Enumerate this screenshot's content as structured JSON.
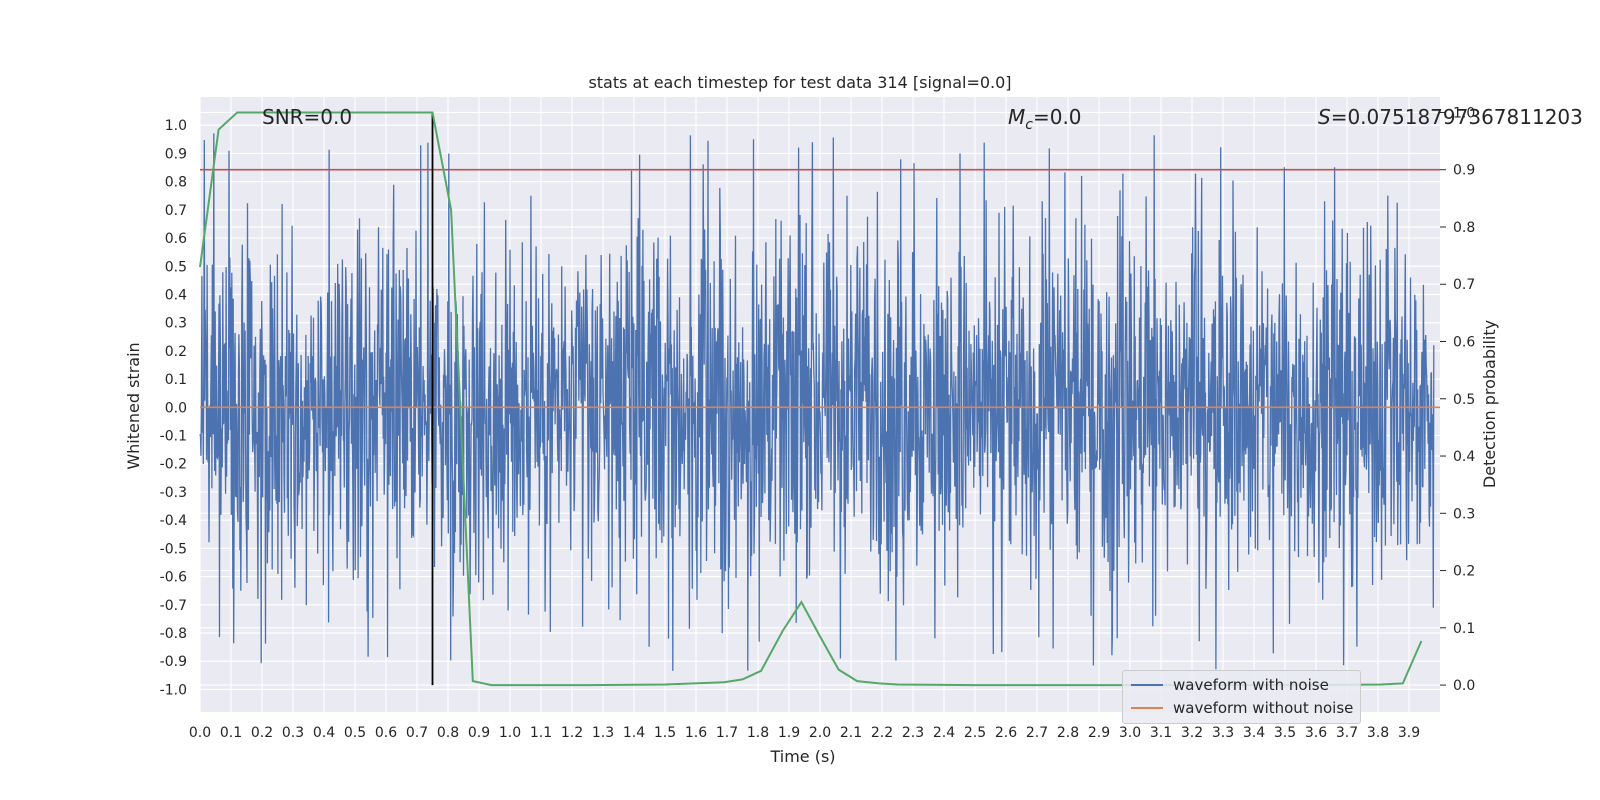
{
  "chart_data": {
    "type": "line",
    "title": "stats at each timestep for test data 314 [signal=0.0]",
    "xlabel": "Time (s)",
    "ylabel": "Whitened strain",
    "y2label": "Detection probability",
    "xlim": [
      0.0,
      4.0
    ],
    "ylim": [
      -1.08,
      1.1
    ],
    "y2lim": [
      -0.047,
      1.027
    ],
    "x_ticks": [
      "0.0",
      "0.1",
      "0.2",
      "0.3",
      "0.4",
      "0.5",
      "0.6",
      "0.7",
      "0.8",
      "0.9",
      "1.0",
      "1.1",
      "1.2",
      "1.3",
      "1.4",
      "1.5",
      "1.6",
      "1.7",
      "1.8",
      "1.9",
      "2.0",
      "2.1",
      "2.2",
      "2.3",
      "2.4",
      "2.5",
      "2.6",
      "2.7",
      "2.8",
      "2.9",
      "3.0",
      "3.1",
      "3.2",
      "3.3",
      "3.4",
      "3.5",
      "3.6",
      "3.7",
      "3.8",
      "3.9"
    ],
    "y_ticks": [
      "1.0",
      "0.9",
      "0.8",
      "0.7",
      "0.6",
      "0.5",
      "0.4",
      "0.3",
      "0.2",
      "0.1",
      "0.0",
      "-0.1",
      "-0.2",
      "-0.3",
      "-0.4",
      "-0.5",
      "-0.6",
      "-0.7",
      "-0.8",
      "-0.9",
      "-1.0"
    ],
    "y2_ticks": [
      "1.0",
      "0.9",
      "0.8",
      "0.7",
      "0.6",
      "0.5",
      "0.4",
      "0.3",
      "0.2",
      "0.1",
      "0.0"
    ],
    "grid": true,
    "annotations": {
      "snr": "SNR=0.0",
      "mc": "=0.0",
      "mc_symbol": "M",
      "mc_sub": "c",
      "s": "=0.07518797367811203",
      "s_symbol": "S"
    },
    "threshold_y2": 0.9,
    "marker_x": 0.75,
    "series": [
      {
        "name": "waveform with noise",
        "color": "#4c72b0",
        "envelope": {
          "pos_max": 1.0,
          "neg_min": -0.96,
          "typical_pos": 0.45,
          "typical_neg": -0.45
        }
      },
      {
        "name": "waveform without noise",
        "color": "#dd8452",
        "constant": 0.0
      }
    ],
    "detection_probability": {
      "color": "#55a868",
      "x": [
        0.0,
        0.06,
        0.12,
        0.19,
        0.25,
        0.31,
        0.38,
        0.44,
        0.5,
        0.56,
        0.62,
        0.69,
        0.75,
        0.81,
        0.88,
        0.94,
        1.0,
        1.25,
        1.5,
        1.69,
        1.75,
        1.81,
        1.88,
        1.94,
        2.0,
        2.06,
        2.12,
        2.19,
        2.25,
        2.5,
        3.0,
        3.5,
        3.81,
        3.88,
        3.94
      ],
      "y": [
        0.73,
        0.97,
        1.0,
        1.0,
        1.0,
        1.0,
        1.0,
        1.0,
        1.0,
        1.0,
        1.0,
        1.0,
        1.0,
        0.83,
        0.007,
        0.0,
        0.0,
        0.0,
        0.001,
        0.005,
        0.01,
        0.025,
        0.095,
        0.145,
        0.085,
        0.027,
        0.007,
        0.003,
        0.001,
        0.0,
        0.0,
        0.0,
        0.001,
        0.003,
        0.077
      ]
    },
    "legend_location": "lower-right"
  },
  "colors": {
    "threshold": "#c44e52",
    "marker": "#000000",
    "plot_background": "#eaeaf2",
    "grid": "#ffffff"
  }
}
